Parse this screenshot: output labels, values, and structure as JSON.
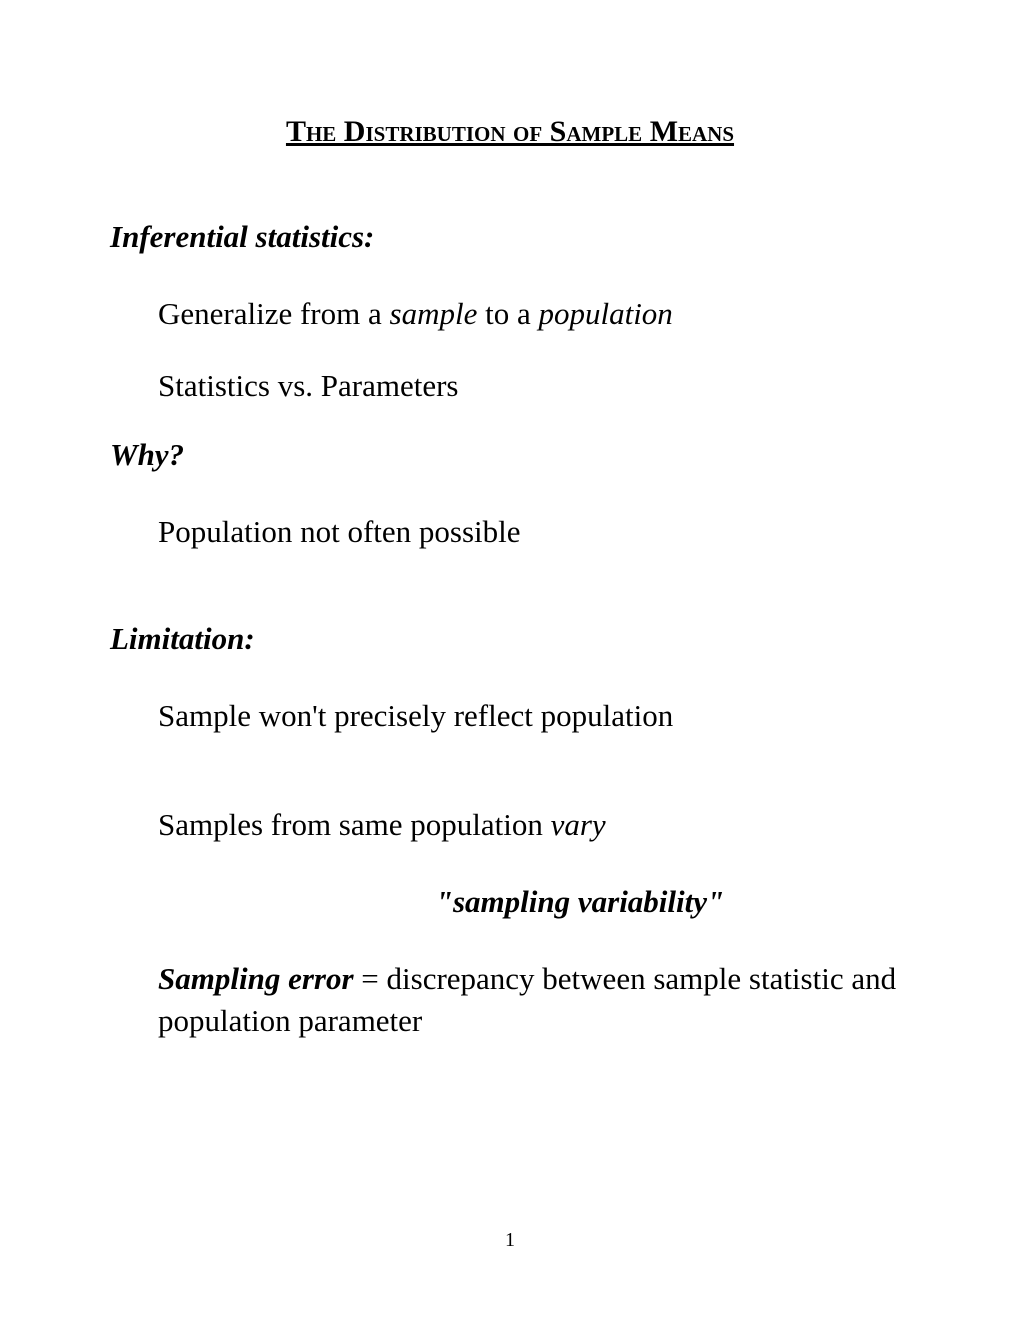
{
  "title": "The Distribution of Sample Means",
  "sections": {
    "inferential": {
      "header": "Inferential statistics:",
      "line1_prefix": "Generalize from a ",
      "line1_italic1": "sample",
      "line1_mid": " to a ",
      "line1_italic2": "population",
      "line2": "Statistics vs. Parameters"
    },
    "why": {
      "header": "Why?",
      "line1": "Population not often possible"
    },
    "limitation": {
      "header": "Limitation:",
      "line1": "Sample won't precisely reflect population",
      "line2_prefix": "Samples from same population ",
      "line2_italic": "vary",
      "quote": "\"sampling variability\"",
      "line3_bold": "Sampling error",
      "line3_rest": " = discrepancy between sample statistic and population parameter"
    }
  },
  "pageNumber": "1"
}
